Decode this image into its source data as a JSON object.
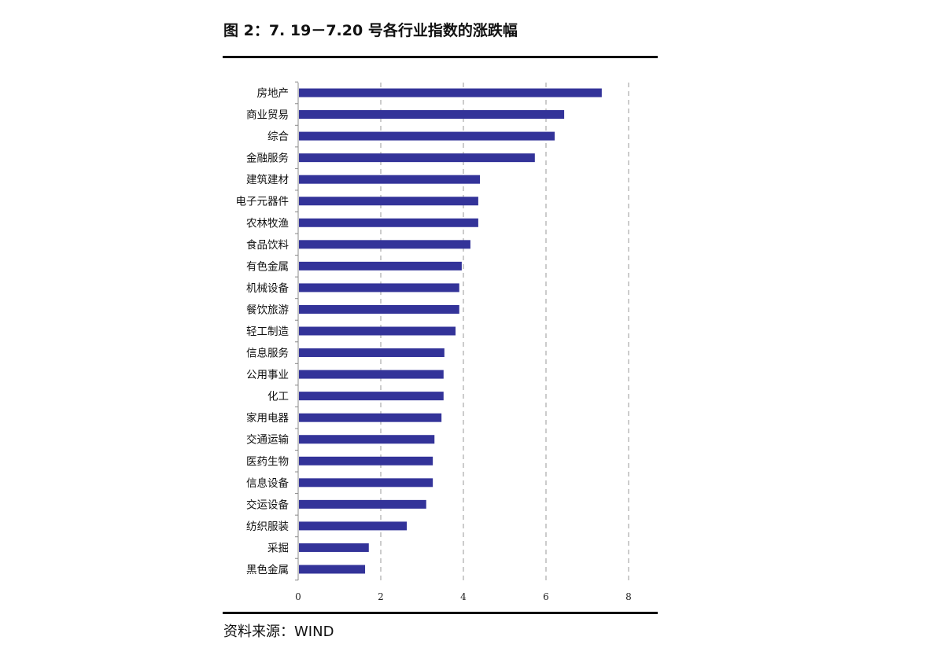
{
  "title": "图 2：7. 19－7.20 号各行业指数的涨跌幅",
  "source": "资料来源：WIND",
  "chart_data": {
    "type": "bar",
    "orientation": "horizontal",
    "title": "图 2：7. 19－7.20 号各行业指数的涨跌幅",
    "xlabel": "",
    "ylabel": "",
    "xlim": [
      0,
      8
    ],
    "xticks": [
      "0",
      "2",
      "4",
      "6",
      "8"
    ],
    "grid": "vertical dashed",
    "bar_color": "#333399",
    "categories": [
      "房地产",
      "商业贸易",
      "综合",
      "金融服务",
      "建筑建材",
      "电子元器件",
      "农林牧渔",
      "食品饮料",
      "有色金属",
      "机械设备",
      "餐饮旅游",
      "轻工制造",
      "信息服务",
      "公用事业",
      "化工",
      "家用电器",
      "交通运输",
      "医药生物",
      "信息设备",
      "交运设备",
      "纺织服装",
      "采掘",
      "黑色金属"
    ],
    "values": [
      7.35,
      6.44,
      6.21,
      5.73,
      4.4,
      4.36,
      4.36,
      4.17,
      3.96,
      3.9,
      3.9,
      3.81,
      3.54,
      3.52,
      3.52,
      3.47,
      3.3,
      3.26,
      3.26,
      3.1,
      2.63,
      1.71,
      1.62
    ]
  }
}
